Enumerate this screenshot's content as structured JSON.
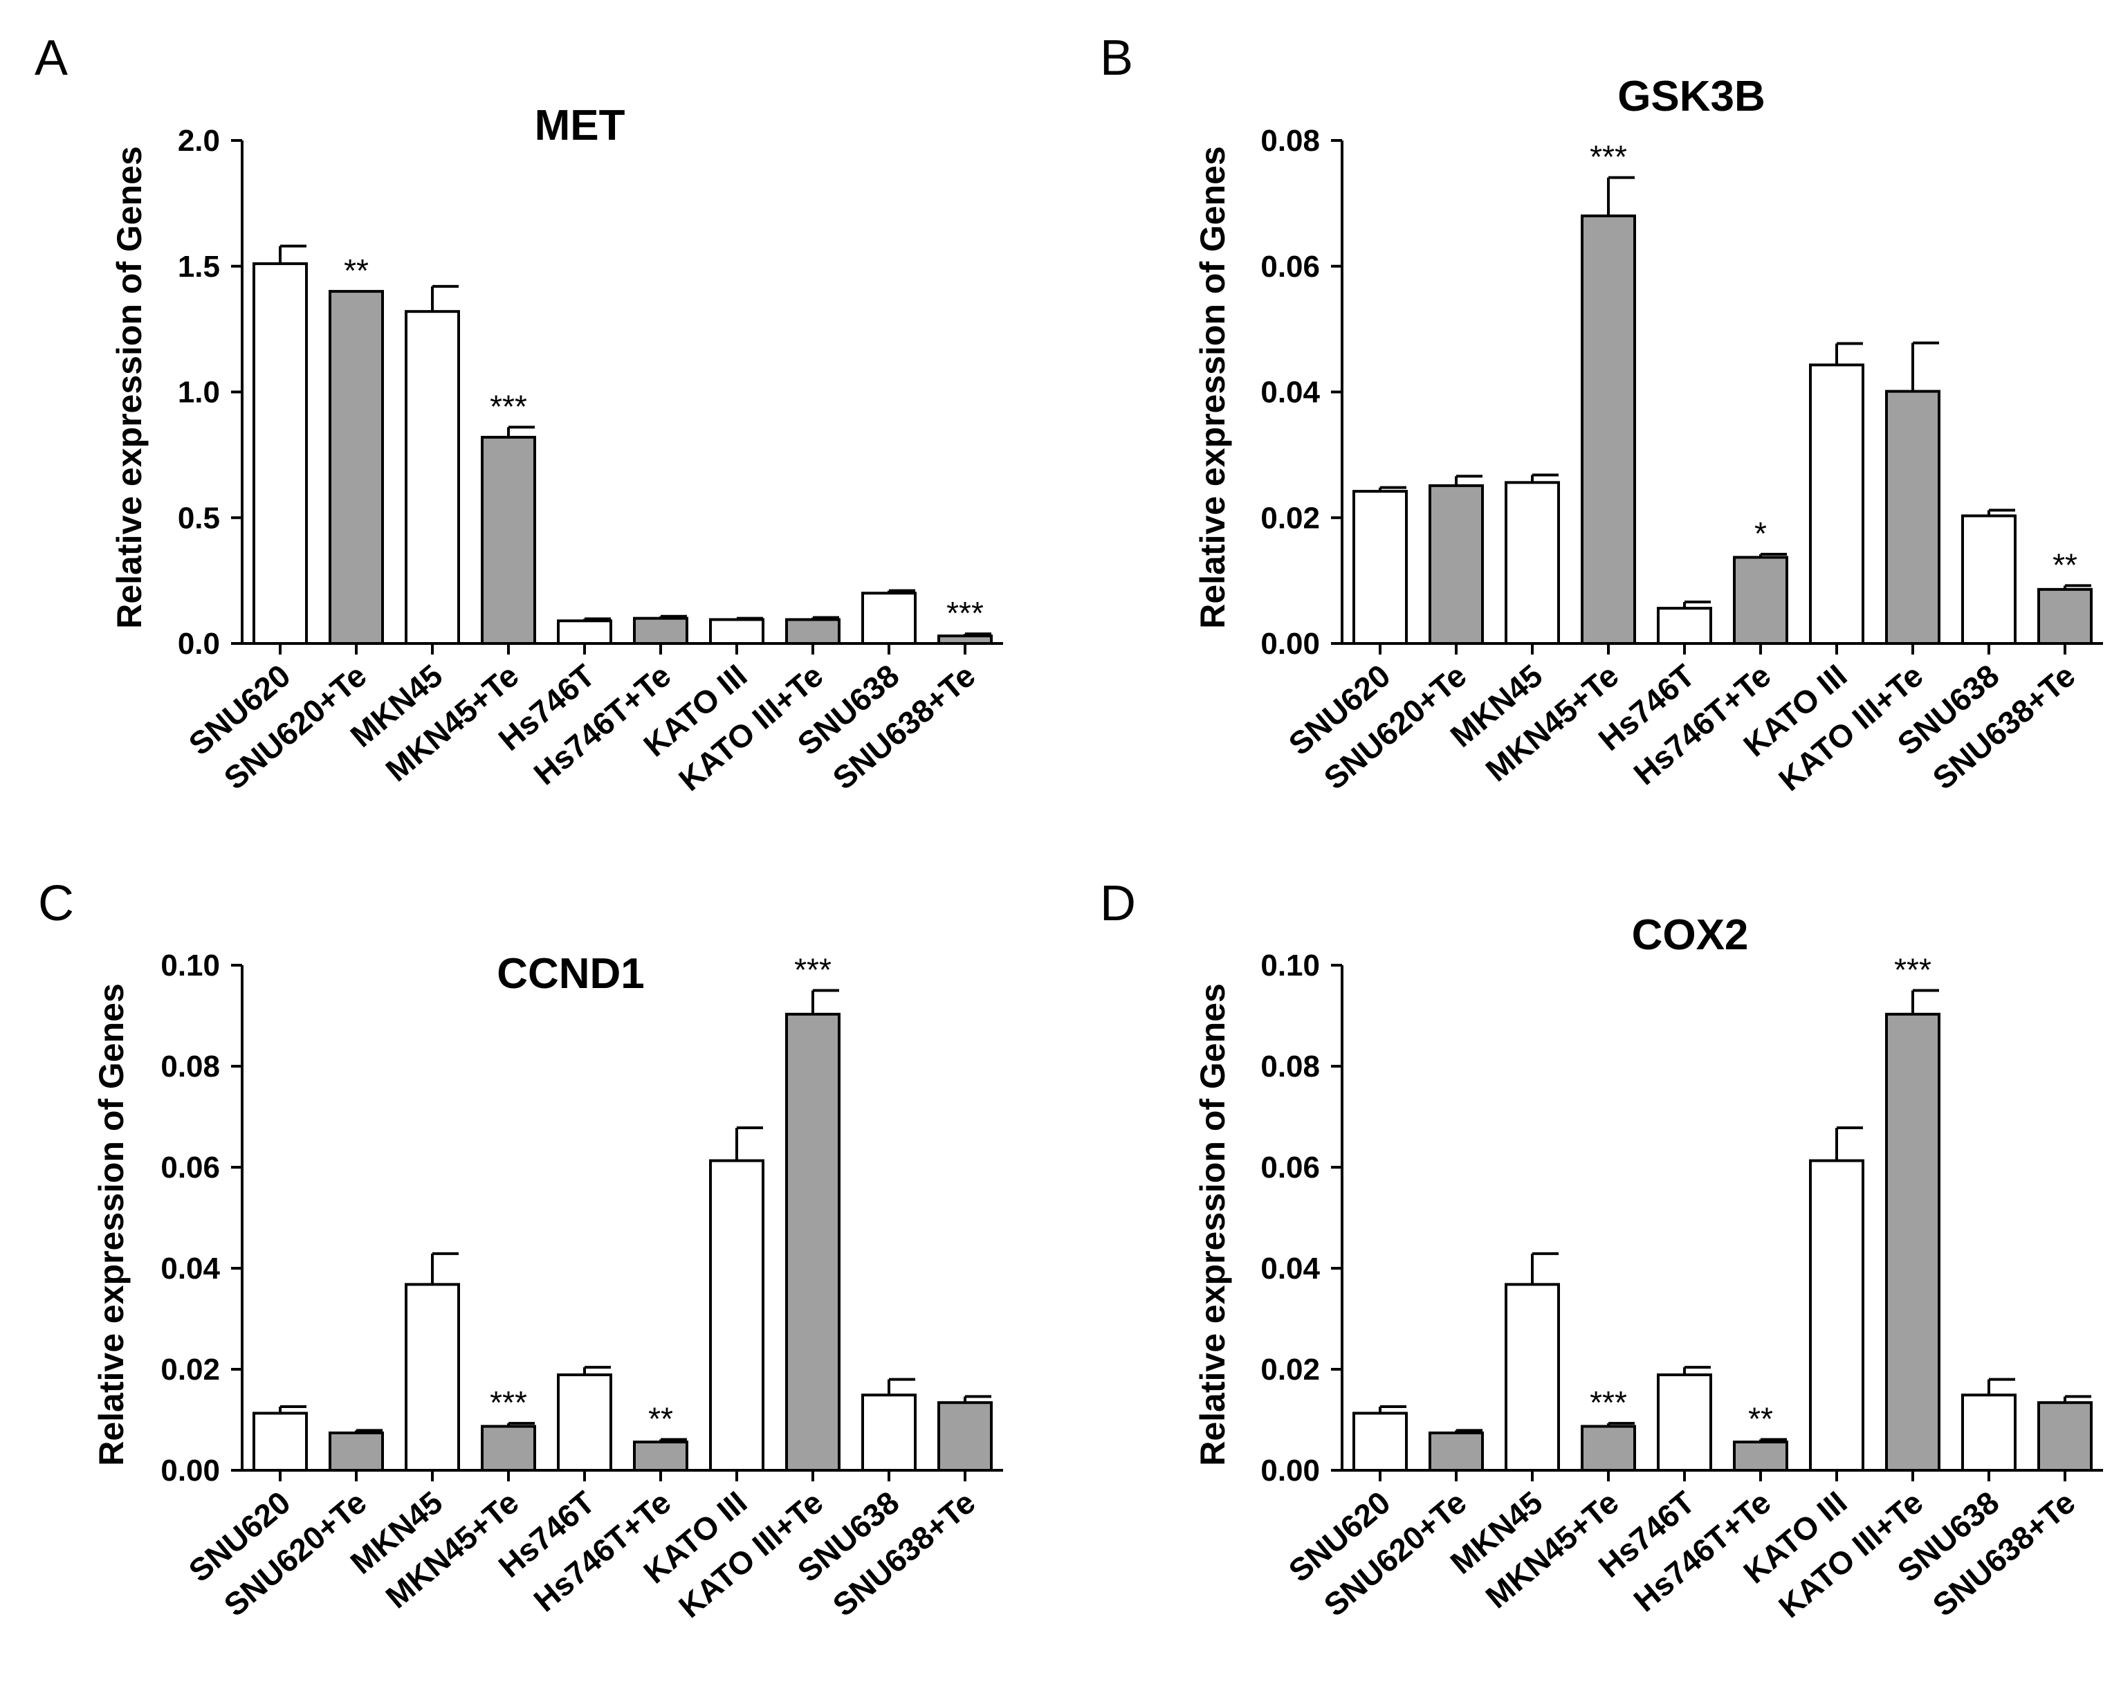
{
  "chart_data": [
    {
      "panel": "A",
      "type": "bar",
      "title": "MET",
      "xlabel": "",
      "ylabel": "Relative expression of Genes",
      "ylim": [
        0,
        2.0
      ],
      "yticks": [
        "0.0",
        "0.5",
        "1.0",
        "1.5",
        "2.0"
      ],
      "ytick_values": [
        0,
        0.5,
        1.0,
        1.5,
        2.0
      ],
      "categories": [
        "SNU620",
        "SNU620+Te",
        "MKN45",
        "MKN45+Te",
        "Hs746T",
        "Hs746T+Te",
        "KATO III",
        "KATO III+Te",
        "SNU638",
        "SNU638+Te"
      ],
      "values": [
        1.51,
        1.4,
        1.32,
        0.82,
        0.09,
        0.1,
        0.095,
        0.095,
        0.2,
        0.03
      ],
      "errors": [
        0.07,
        0.0,
        0.1,
        0.04,
        0.008,
        0.008,
        0.005,
        0.008,
        0.01,
        0.008
      ],
      "significance": [
        "",
        "**",
        "",
        "***",
        "",
        "",
        "",
        "",
        "",
        "***"
      ],
      "bar_fill": [
        "white",
        "gray",
        "white",
        "gray",
        "white",
        "gray",
        "white",
        "gray",
        "white",
        "gray"
      ]
    },
    {
      "panel": "B",
      "type": "bar",
      "title": "GSK3B",
      "xlabel": "",
      "ylabel": "Relative expression of Genes",
      "ylim": [
        0,
        0.08
      ],
      "yticks": [
        "0.00",
        "0.02",
        "0.04",
        "0.06",
        "0.08"
      ],
      "ytick_values": [
        0,
        0.02,
        0.04,
        0.06,
        0.08
      ],
      "categories": [
        "SNU620",
        "SNU620+Te",
        "MKN45",
        "MKN45+Te",
        "Hs746T",
        "Hs746T+Te",
        "KATO III",
        "KATO III+Te",
        "SNU638",
        "SNU638+Te"
      ],
      "values": [
        0.0242,
        0.0251,
        0.0256,
        0.068,
        0.0056,
        0.0137,
        0.0443,
        0.0401,
        0.0203,
        0.0086
      ],
      "errors": [
        0.0006,
        0.0015,
        0.0012,
        0.0061,
        0.001,
        0.0005,
        0.0034,
        0.0077,
        0.0009,
        0.0006
      ],
      "significance": [
        "",
        "",
        "",
        "***",
        "",
        "*",
        "",
        "",
        "",
        "**"
      ],
      "bar_fill": [
        "white",
        "gray",
        "white",
        "gray",
        "white",
        "gray",
        "white",
        "gray",
        "white",
        "gray"
      ]
    },
    {
      "panel": "C",
      "type": "bar",
      "title": "CCND1",
      "xlabel": "",
      "ylabel": "Relative expression of Genes",
      "ylim": [
        0,
        0.1
      ],
      "yticks": [
        "0.00",
        "0.02",
        "0.04",
        "0.06",
        "0.08",
        "0.10"
      ],
      "ytick_values": [
        0,
        0.02,
        0.04,
        0.06,
        0.08,
        0.1
      ],
      "categories": [
        "SNU620",
        "SNU620+Te",
        "MKN45",
        "MKN45+Te",
        "Hs746T",
        "Hs746T+Te",
        "KATO III",
        "KATO III+Te",
        "SNU638",
        "SNU638+Te"
      ],
      "values": [
        0.0113,
        0.0074,
        0.0368,
        0.0087,
        0.0189,
        0.0056,
        0.0613,
        0.0903,
        0.0149,
        0.0134
      ],
      "errors": [
        0.0013,
        0.0005,
        0.0061,
        0.0006,
        0.0015,
        0.0005,
        0.0065,
        0.0047,
        0.0031,
        0.0012
      ],
      "significance": [
        "",
        "",
        "",
        "***",
        "",
        "**",
        "",
        "***",
        "",
        ""
      ],
      "bar_fill": [
        "white",
        "gray",
        "white",
        "gray",
        "white",
        "gray",
        "white",
        "gray",
        "white",
        "gray"
      ]
    },
    {
      "panel": "D",
      "type": "bar",
      "title": "COX2",
      "xlabel": "",
      "ylabel": "Relative expression of Genes",
      "ylim": [
        0,
        0.1
      ],
      "yticks": [
        "0.00",
        "0.02",
        "0.04",
        "0.06",
        "0.08",
        "0.10"
      ],
      "ytick_values": [
        0,
        0.02,
        0.04,
        0.06,
        0.08,
        0.1
      ],
      "categories": [
        "SNU620",
        "SNU620+Te",
        "MKN45",
        "MKN45+Te",
        "Hs746T",
        "Hs746T+Te",
        "KATO III",
        "KATO III+Te",
        "SNU638",
        "SNU638+Te"
      ],
      "values": [
        0.0113,
        0.0074,
        0.0368,
        0.0087,
        0.0189,
        0.0056,
        0.0613,
        0.0903,
        0.0149,
        0.0134
      ],
      "errors": [
        0.0013,
        0.0005,
        0.0061,
        0.0006,
        0.0015,
        0.0005,
        0.0065,
        0.0047,
        0.0031,
        0.0012
      ],
      "significance": [
        "",
        "",
        "",
        "***",
        "",
        "**",
        "",
        "***",
        "",
        ""
      ],
      "bar_fill": [
        "white",
        "gray",
        "white",
        "gray",
        "white",
        "gray",
        "white",
        "gray",
        "white",
        "gray"
      ]
    }
  ],
  "colors": {
    "white_bar": "#ffffff",
    "gray_bar": "#a0a0a0",
    "stroke": "#000000"
  }
}
